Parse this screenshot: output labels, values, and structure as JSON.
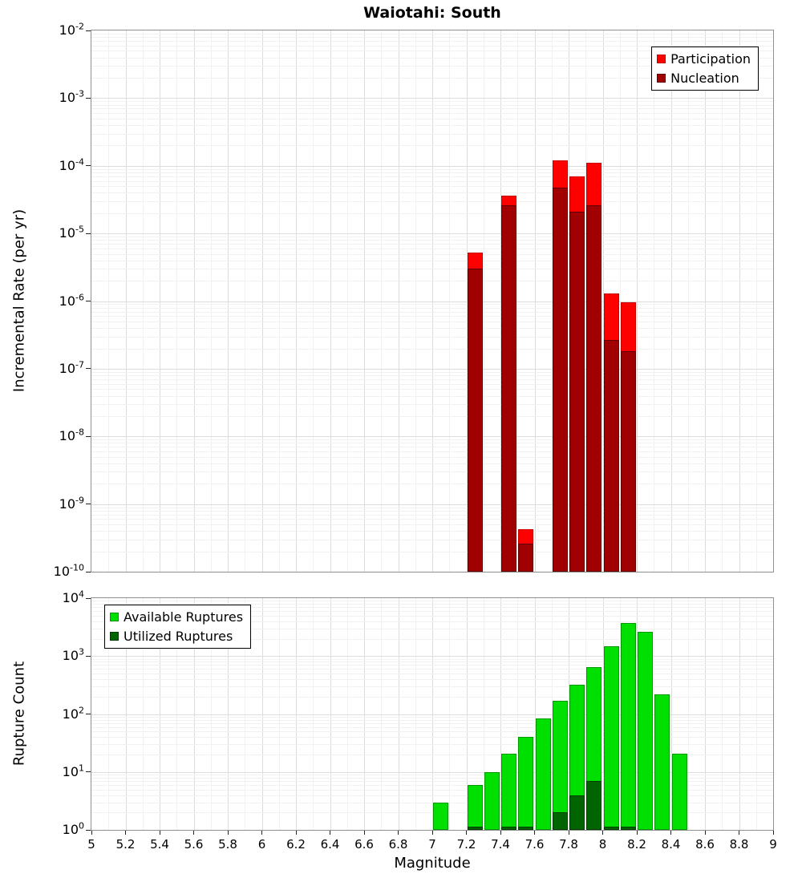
{
  "chart_data": [
    {
      "type": "bar",
      "title": "Waiotahi: South",
      "xlabel": "Magnitude",
      "ylabel": "Incremental Rate (per yr)",
      "y_scale": "log",
      "x_range": [
        5,
        9
      ],
      "x_tick_step": 0.2,
      "ylim": [
        1e-10,
        0.01
      ],
      "y_tick_exponents": [
        -2,
        -3,
        -4,
        -5,
        -6,
        -7,
        -8,
        -9,
        -10
      ],
      "bin_width": 0.1,
      "bar_draw_width": 0.09,
      "grid": true,
      "legend_position": "top-right",
      "series": [
        {
          "name": "Participation",
          "color": "#ff0000",
          "edge_color": "#c80000",
          "x": [
            7.25,
            7.45,
            7.55,
            7.75,
            7.85,
            7.95,
            8.05,
            8.15
          ],
          "values": [
            5.2e-06,
            3.6e-05,
            4.2e-10,
            0.00012,
            7e-05,
            0.00011,
            1.3e-06,
            9.5e-07
          ]
        },
        {
          "name": "Nucleation",
          "color": "#a00000",
          "edge_color": "#600000",
          "x": [
            7.25,
            7.45,
            7.55,
            7.75,
            7.85,
            7.95,
            8.05,
            8.15
          ],
          "values": [
            3e-06,
            2.6e-05,
            2.6e-10,
            4.8e-05,
            2.1e-05,
            2.6e-05,
            2.7e-07,
            1.8e-07
          ]
        }
      ]
    },
    {
      "type": "bar",
      "title": "",
      "xlabel": "Magnitude",
      "ylabel": "Rupture Count",
      "y_scale": "log",
      "x_range": [
        5,
        9
      ],
      "x_tick_step": 0.2,
      "x_tick_labels": [
        "5",
        "5.2",
        "5.4",
        "5.6",
        "5.8",
        "6",
        "6.2",
        "6.4",
        "6.6",
        "6.8",
        "7",
        "7.2",
        "7.4",
        "7.6",
        "7.8",
        "8",
        "8.2",
        "8.4",
        "8.6",
        "8.8",
        "9"
      ],
      "ylim": [
        1,
        10000
      ],
      "y_tick_exponents": [
        4,
        3,
        2,
        1,
        0
      ],
      "bin_width": 0.1,
      "bar_draw_width": 0.09,
      "grid": true,
      "legend_position": "top-left",
      "series": [
        {
          "name": "Available Ruptures",
          "color": "#00e000",
          "edge_color": "#009900",
          "x": [
            7.05,
            7.25,
            7.35,
            7.45,
            7.55,
            7.65,
            7.75,
            7.85,
            7.95,
            8.05,
            8.15,
            8.25,
            8.35,
            8.45
          ],
          "values": [
            3,
            6,
            10,
            21,
            40,
            83,
            170,
            320,
            650,
            1500,
            3700,
            2600,
            220,
            21
          ]
        },
        {
          "name": "Utilized Ruptures",
          "color": "#006400",
          "edge_color": "#003c00",
          "x": [
            7.25,
            7.45,
            7.55,
            7.75,
            7.85,
            7.95,
            8.05,
            8.15
          ],
          "values": [
            1,
            1,
            1,
            2,
            4,
            7,
            1,
            1
          ]
        }
      ]
    }
  ]
}
